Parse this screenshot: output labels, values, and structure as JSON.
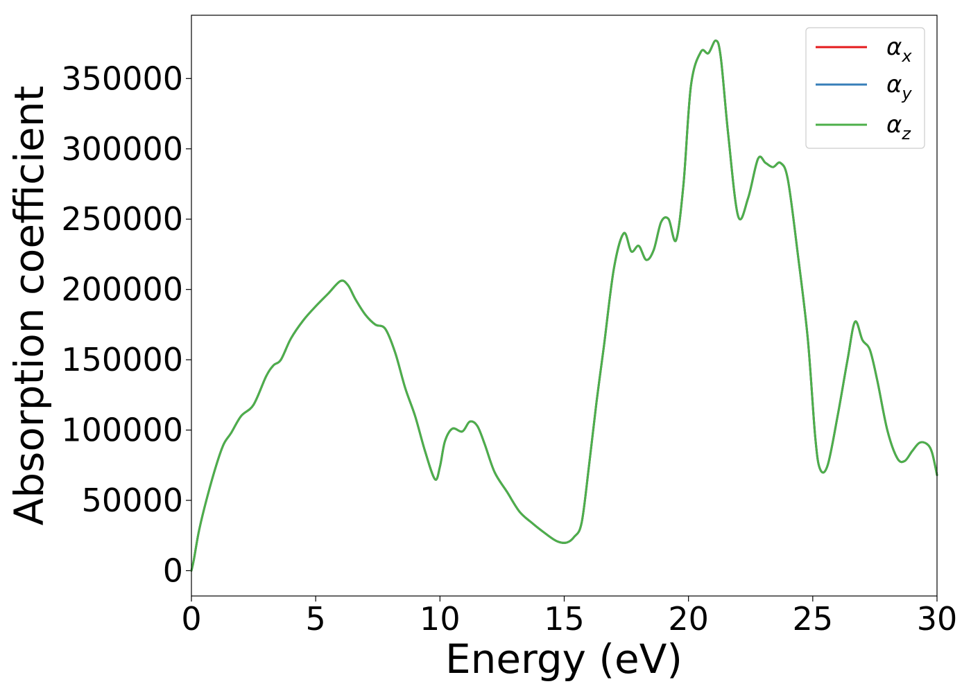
{
  "chart_data": {
    "type": "line",
    "xlabel": "Energy (eV)",
    "ylabel": "Absorption coefficient",
    "xlim": [
      0,
      30
    ],
    "ylim": [
      -18000,
      395000
    ],
    "x_ticks": [
      0,
      5,
      10,
      15,
      20,
      25,
      30
    ],
    "x_tick_labels": [
      "0",
      "5",
      "10",
      "15",
      "20",
      "25",
      "30"
    ],
    "y_ticks": [
      0,
      50000,
      100000,
      150000,
      200000,
      250000,
      300000,
      350000
    ],
    "y_tick_labels": [
      "0",
      "50000",
      "100000",
      "150000",
      "200000",
      "250000",
      "300000",
      "350000"
    ],
    "grid": false,
    "legend_position": "top-right",
    "series": [
      {
        "name": "α",
        "subscript": "x",
        "color": "#e41a1c"
      },
      {
        "name": "α",
        "subscript": "y",
        "color": "#377eb8"
      },
      {
        "name": "α",
        "subscript": "z",
        "color": "#4daf4a"
      }
    ],
    "x": [
      0,
      0.1,
      0.3,
      0.6,
      1.0,
      1.3,
      1.6,
      2.0,
      2.5,
      3.0,
      3.3,
      3.6,
      4.0,
      4.5,
      5.0,
      5.5,
      6.0,
      6.3,
      6.6,
      7.0,
      7.4,
      7.8,
      8.2,
      8.6,
      9.0,
      9.4,
      9.8,
      10.0,
      10.2,
      10.5,
      10.9,
      11.2,
      11.5,
      11.8,
      12.2,
      12.7,
      13.2,
      13.7,
      14.2,
      14.7,
      15.1,
      15.4,
      15.7,
      16.0,
      16.3,
      16.6,
      17.0,
      17.4,
      17.7,
      18.0,
      18.3,
      18.6,
      18.9,
      19.2,
      19.5,
      19.8,
      20.1,
      20.5,
      20.8,
      21.1,
      21.3,
      21.6,
      22.0,
      22.4,
      22.8,
      23.1,
      23.4,
      23.7,
      24.0,
      24.4,
      24.8,
      25.1,
      25.3,
      25.6,
      26.0,
      26.4,
      26.7,
      27.0,
      27.3,
      27.6,
      28.0,
      28.4,
      28.7,
      29.0,
      29.3,
      29.6,
      29.8,
      30.0
    ],
    "values": [
      0,
      8000,
      28000,
      50000,
      75000,
      90000,
      98000,
      110000,
      118000,
      138000,
      146000,
      150000,
      165000,
      178000,
      188000,
      197000,
      206000,
      203000,
      193000,
      182000,
      175000,
      172000,
      155000,
      130000,
      110000,
      85000,
      65000,
      74000,
      92000,
      101000,
      99000,
      106000,
      103000,
      90000,
      70000,
      56000,
      42000,
      34000,
      27000,
      21000,
      20000,
      24000,
      34000,
      75000,
      120000,
      160000,
      215000,
      240000,
      227000,
      231000,
      221000,
      228000,
      248000,
      250000,
      235000,
      275000,
      345000,
      369000,
      368000,
      377000,
      365000,
      310000,
      252000,
      265000,
      293000,
      290000,
      287000,
      290000,
      278000,
      225000,
      165000,
      95000,
      72000,
      75000,
      110000,
      150000,
      177000,
      164000,
      157000,
      135000,
      100000,
      80000,
      78000,
      85000,
      91000,
      90000,
      84000,
      68000
    ]
  }
}
